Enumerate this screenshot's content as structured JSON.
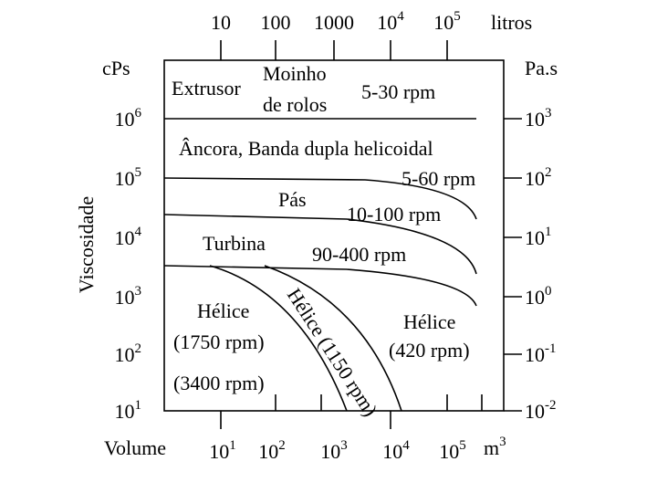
{
  "axes": {
    "left_unit": "cPs",
    "right_unit": "Pa.s",
    "y_title": "Viscosidade",
    "x_title": "Volume",
    "top_unit": "litros",
    "bottom_unit": {
      "base": "m",
      "exp": "3"
    },
    "left_ticks": [
      {
        "base": "10",
        "exp": "6"
      },
      {
        "base": "10",
        "exp": "5"
      },
      {
        "base": "10",
        "exp": "4"
      },
      {
        "base": "10",
        "exp": "3"
      },
      {
        "base": "10",
        "exp": "2"
      },
      {
        "base": "10",
        "exp": "1"
      }
    ],
    "right_ticks": [
      {
        "base": "10",
        "exp": "3"
      },
      {
        "base": "10",
        "exp": "2"
      },
      {
        "base": "10",
        "exp": "1"
      },
      {
        "base": "10",
        "exp": "0"
      },
      {
        "base": "10",
        "exp": "-1"
      },
      {
        "base": "10",
        "exp": "-2"
      }
    ],
    "top_ticks": [
      {
        "base": "10",
        "exp": ""
      },
      {
        "base": "100",
        "exp": ""
      },
      {
        "base": "1000",
        "exp": ""
      },
      {
        "base": "10",
        "exp": "4"
      },
      {
        "base": "10",
        "exp": "5"
      }
    ],
    "bottom_ticks": [
      {
        "base": "10",
        "exp": "1"
      },
      {
        "base": "10",
        "exp": "2"
      },
      {
        "base": "10",
        "exp": "3"
      },
      {
        "base": "10",
        "exp": "4"
      },
      {
        "base": "10",
        "exp": "5"
      }
    ]
  },
  "regions": [
    "Extrusor",
    "Moinho",
    "de rolos",
    "5-30 rpm",
    "Âncora, Banda dupla helicoidal",
    "5-60 rpm",
    "Pás",
    "10-100 rpm",
    "Turbina",
    "90-400 rpm",
    "Hélice",
    "(1750 rpm)",
    "(3400 rpm)",
    "Hélice",
    "(420 rpm)",
    "Hélice (1150 rpm)"
  ]
}
